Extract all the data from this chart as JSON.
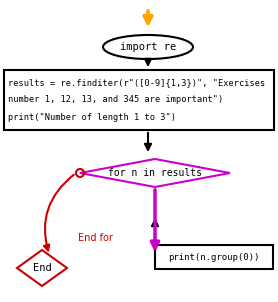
{
  "bg_color": "#ffffff",
  "start_arrow_color": "#FFA500",
  "black_arrow_color": "#000000",
  "purple_arrow_color": "#CC00CC",
  "red_color": "#CC0000",
  "ellipse_text": "import re",
  "rect_line1": "results = re.finditer(r\"([0-9]{1,3})\", \"Exercises",
  "rect_line2": "number 1, 12, 13, and 345 are important\")",
  "rect_line3": "print(\"Number of length 1 to 3\")",
  "diamond_text": "for n in results",
  "diamond_color": "#CC00CC",
  "print_text": "print(n.group(0))",
  "end_text": "End",
  "end_for_text": "End for",
  "figw": 2.78,
  "figh": 3.02,
  "dpi": 100
}
